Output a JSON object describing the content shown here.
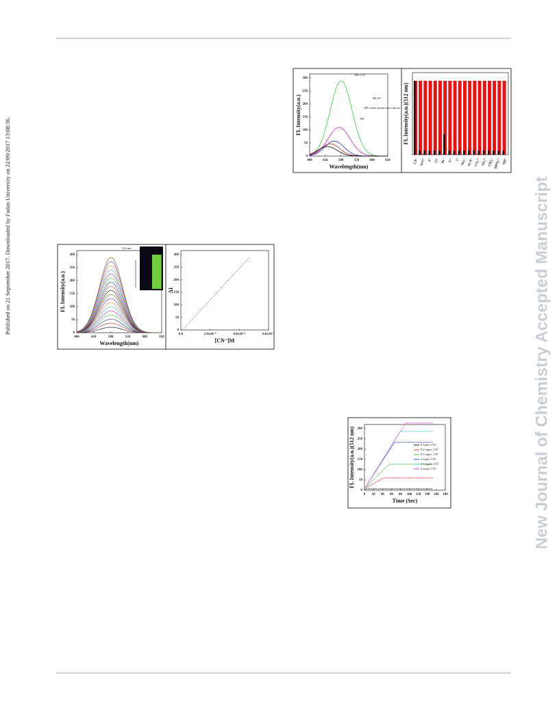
{
  "side_stamp": "Published on 21 September 2017. Downloaded by Fudan University on 22/09/2017 13:08:36.",
  "watermark": "New Journal of Chemistry Accepted Manuscript",
  "figures": [
    {
      "panels": [
        {
          "y_label": "FL Intensity(a.u.)",
          "x_label": "Wavelength(nm)",
          "x_ticks": [
            "400",
            "450",
            "500",
            "550",
            "600",
            "650"
          ],
          "y_ticks": [
            "0",
            "50",
            "100",
            "150",
            "200",
            "250",
            "300"
          ],
          "annotations": [
            "BP+CN⁻",
            "BP+S²⁻",
            "BP+other anions and cations",
            "BP"
          ]
        },
        {
          "y_label": "FL Intensity(a.u.)(512 nm)",
          "x_ticks": [
            "CN⁻",
            "AcO⁻",
            "F⁻",
            "Cl⁻",
            "Br⁻",
            "S²⁻",
            "I⁻",
            "NO₃⁻",
            "SCN⁻",
            "CO₃²⁻",
            "SO₄²⁻",
            "ClO₄⁻",
            "HPO₄²⁻",
            "OH⁻"
          ]
        }
      ]
    },
    {
      "panels": [
        {
          "y_label": "FL Intensity(a.u.)",
          "x_label": "Wavelength(nm)",
          "x_ticks": [
            "400",
            "450",
            "500",
            "550",
            "600",
            "650"
          ],
          "y_ticks": [
            "0",
            "50",
            "100",
            "150",
            "200",
            "250",
            "300"
          ],
          "annotations": [
            "512 nm"
          ]
        },
        {
          "y_label": "ΔI",
          "x_label": "[CN⁻]M",
          "x_ticks": [
            "0.0",
            "2.0x10⁻⁶",
            "4.0x10⁻⁶",
            "6.0x10⁻⁶"
          ],
          "y_ticks": [
            "0",
            "50",
            "100",
            "150",
            "200",
            "250",
            "300"
          ]
        }
      ]
    },
    {
      "panels": [
        {
          "y_label": "FL Intensity(a.u.)(512 nm)",
          "x_label": "Time (Sec)",
          "x_ticks": [
            "0",
            "20",
            "40",
            "60",
            "80",
            "100",
            "120",
            "140",
            "160",
            "180"
          ],
          "y_ticks": [
            "0",
            "50",
            "100",
            "150",
            "200",
            "250",
            "300"
          ],
          "legend": [
            "0 equiv. CN⁻",
            "0.2 equiv. CN⁻",
            "0.5 equiv. CN⁻",
            "1 equiv. CN⁻",
            "1.5 equiv. CN⁻",
            "2 equiv. CN⁻"
          ]
        }
      ]
    }
  ]
}
